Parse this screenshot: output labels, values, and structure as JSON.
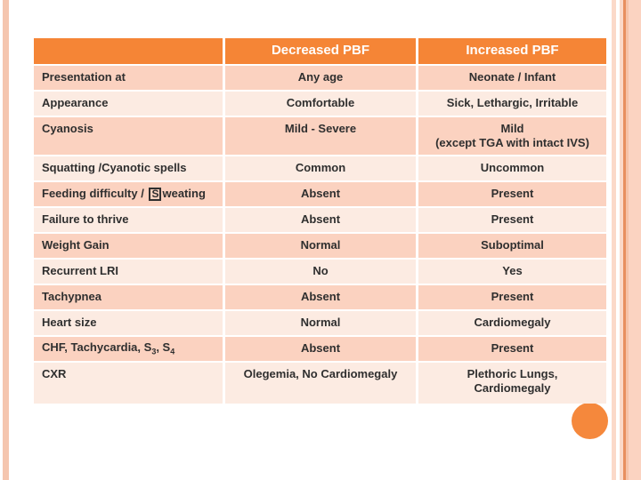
{
  "colors": {
    "accent_orange": "#f58536",
    "row_dark": "#fbd2c0",
    "row_light": "#fcebe2",
    "stripe_light": "#f5c6af",
    "stripe_dark": "#e88f5f",
    "circle_orange": "#f5883c",
    "header_text": "#ffffff",
    "body_text": "#2f2f2f"
  },
  "table": {
    "header": {
      "col1": "",
      "col2": "Decreased PBF",
      "col3": "Increased PBF"
    },
    "rows": [
      {
        "label": "Presentation at",
        "decreased": "Any age",
        "increased": "Neonate / Infant"
      },
      {
        "label": "Appearance",
        "decreased": "Comfortable",
        "increased": "Sick, Lethargic, Irritable"
      },
      {
        "label": "Cyanosis",
        "decreased": "Mild - Severe",
        "increased": "Mild\n(except TGA with intact IVS)"
      },
      {
        "label": "Squatting /Cyanotic spells",
        "decreased": "Common",
        "increased": "Uncommon"
      },
      {
        "label_pre": "Feeding difficulty /",
        "label_boxed": "S",
        "label_post": "weating",
        "decreased": "Absent",
        "increased": "Present"
      },
      {
        "label": "Failure to thrive",
        "decreased": "Absent",
        "increased": "Present"
      },
      {
        "label": "Weight Gain",
        "decreased": "Normal",
        "increased": "Suboptimal"
      },
      {
        "label": "Recurrent LRI",
        "decreased": "No",
        "increased": "Yes"
      },
      {
        "label": "Tachypnea",
        "decreased": "Absent",
        "increased": "Present"
      },
      {
        "label": "Heart size",
        "decreased": "Normal",
        "increased": "Cardiomegaly"
      },
      {
        "label_pre": "CHF, Tachycardia, S",
        "label_sub1": "3",
        "label_mid": ", S",
        "label_sub2": "4",
        "decreased": "Absent",
        "increased": "Present"
      },
      {
        "label": "CXR",
        "decreased": "Olegemia, No Cardiomegaly",
        "increased": "Plethoric Lungs,\nCardiomegaly"
      }
    ]
  }
}
